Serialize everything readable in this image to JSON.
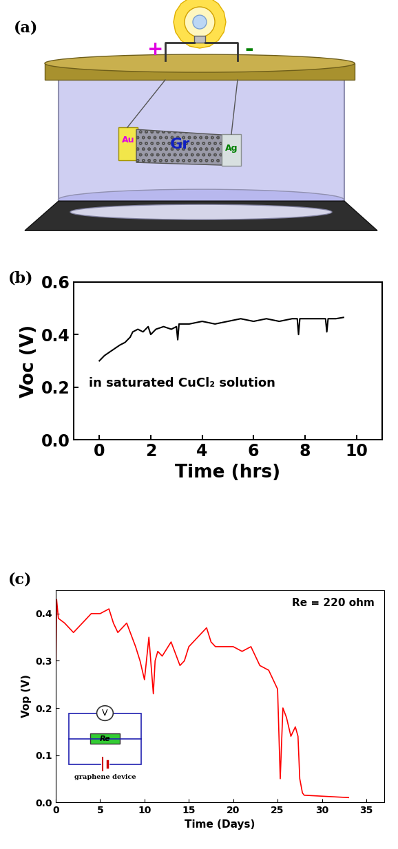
{
  "diagram": {
    "panel": "(a)",
    "positive": "+",
    "negative": "-",
    "electrode_left": "Au",
    "channel": "Gr",
    "electrode_right": "Ag"
  },
  "chart_data": [
    {
      "type": "line",
      "annotations": [
        "(b)",
        "in saturated CuCl₂ solution"
      ],
      "x_label": "Time (hrs)",
      "y_label": "Voc (V)",
      "x": [
        0,
        0.2,
        0.5,
        0.8,
        1.0,
        1.2,
        1.3,
        1.5,
        1.7,
        1.9,
        2.0,
        2.2,
        2.5,
        2.8,
        3.0,
        3.05,
        3.1,
        3.5,
        4.0,
        4.5,
        5.0,
        5.5,
        6.0,
        6.5,
        7.0,
        7.5,
        7.7,
        7.75,
        7.8,
        8.0,
        8.5,
        8.8,
        8.85,
        8.9,
        9.2,
        9.5
      ],
      "values": [
        0.3,
        0.32,
        0.34,
        0.36,
        0.37,
        0.39,
        0.41,
        0.42,
        0.41,
        0.43,
        0.4,
        0.42,
        0.43,
        0.42,
        0.43,
        0.38,
        0.44,
        0.44,
        0.45,
        0.44,
        0.45,
        0.46,
        0.45,
        0.46,
        0.45,
        0.46,
        0.46,
        0.4,
        0.46,
        0.46,
        0.46,
        0.46,
        0.41,
        0.46,
        0.46,
        0.465
      ],
      "color": "#000000",
      "xlim": [
        -1,
        11
      ],
      "xticks": [
        0,
        2,
        4,
        6,
        8,
        10
      ],
      "ylim": [
        0,
        0.6
      ],
      "yticks": [
        {
          "value": 0,
          "label": "0.0"
        },
        {
          "value": 0.2,
          "label": "0.2"
        },
        {
          "value": 0.4,
          "label": "0.4"
        },
        {
          "value": 0.6,
          "label": "0.6"
        }
      ],
      "grid": false
    },
    {
      "type": "line",
      "annotations": [
        "(c)",
        "Re = 220 ohm"
      ],
      "x_label": "Time (Days)",
      "y_label": "Vop (V)",
      "inset": {
        "meter": "V",
        "resistor": "Re",
        "source": "graphene device"
      },
      "x": [
        0,
        0.1,
        0.3,
        1,
        2,
        3,
        4,
        5,
        6,
        6.5,
        7,
        8,
        9,
        9.5,
        10,
        10.5,
        11,
        11.2,
        11.5,
        12,
        13,
        14,
        14.5,
        15,
        16,
        17,
        17.5,
        18,
        18.5,
        19,
        20,
        21,
        22,
        23,
        24,
        25,
        25.3,
        25.6,
        26,
        26.5,
        27,
        27.3,
        27.5,
        27.8,
        28,
        30,
        33
      ],
      "values": [
        0.25,
        0.43,
        0.39,
        0.38,
        0.36,
        0.38,
        0.4,
        0.4,
        0.41,
        0.38,
        0.36,
        0.38,
        0.33,
        0.3,
        0.26,
        0.35,
        0.23,
        0.3,
        0.32,
        0.31,
        0.34,
        0.29,
        0.3,
        0.33,
        0.35,
        0.37,
        0.34,
        0.33,
        0.33,
        0.33,
        0.33,
        0.32,
        0.33,
        0.29,
        0.28,
        0.24,
        0.05,
        0.2,
        0.18,
        0.14,
        0.16,
        0.14,
        0.05,
        0.02,
        0.015,
        0.013,
        0.01
      ],
      "color": "#ff0000",
      "xlim": [
        0,
        37
      ],
      "xticks": [
        0,
        5,
        10,
        15,
        20,
        25,
        30,
        35
      ],
      "ylim": [
        0,
        0.45
      ],
      "yticks": [
        {
          "value": 0,
          "label": "0.0"
        },
        {
          "value": 0.1,
          "label": "0.1"
        },
        {
          "value": 0.2,
          "label": "0.2"
        },
        {
          "value": 0.3,
          "label": "0.3"
        },
        {
          "value": 0.4,
          "label": "0.4"
        }
      ],
      "grid": false
    }
  ]
}
